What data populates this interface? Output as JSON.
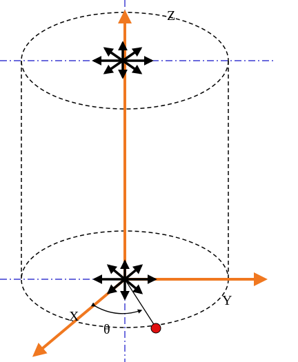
{
  "labels": {
    "z_axis": "Z",
    "y_axis": "Y",
    "x_axis": "X",
    "angle": "θ"
  },
  "colors": {
    "axis": "#f07820",
    "centerline": "#1010c8",
    "cylinder": "#000000",
    "point": "#e01010",
    "arrows": "#000000"
  },
  "icons": {
    "top_flux": "radial-arrows-icon",
    "bottom_flux": "radial-arrows-icon",
    "point": "red-dot-icon"
  }
}
